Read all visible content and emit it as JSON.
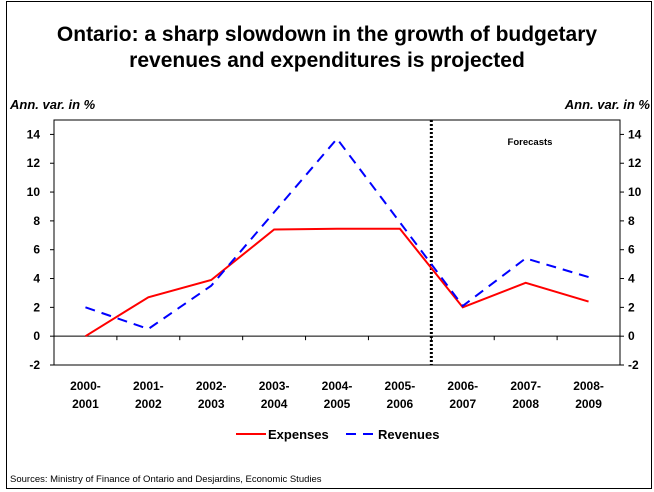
{
  "chart_data": {
    "type": "line",
    "title": "Ontario: a sharp slowdown in the growth of budgetary revenues and expenditures is projected",
    "title_lines": [
      "Ontario: a sharp slowdown in the growth of budgetary",
      "revenues and expenditures is projected"
    ],
    "ylabel_left": "Ann. var. in %",
    "ylabel_right": "Ann. var. in %",
    "ylim": [
      -2,
      15
    ],
    "y_ticks": [
      -2,
      0,
      2,
      4,
      6,
      8,
      10,
      12,
      14
    ],
    "categories": [
      [
        "2000-",
        "2001"
      ],
      [
        "2001-",
        "2002"
      ],
      [
        "2002-",
        "2003"
      ],
      [
        "2003-",
        "2004"
      ],
      [
        "2004-",
        "2005"
      ],
      [
        "2005-",
        "2006"
      ],
      [
        "2006-",
        "2007"
      ],
      [
        "2007-",
        "2008"
      ],
      [
        "2008-",
        "2009"
      ]
    ],
    "series": [
      {
        "name": "Expenses",
        "color": "#ff0000",
        "dash": "solid",
        "values": [
          0.0,
          2.7,
          3.9,
          7.4,
          7.45,
          7.45,
          2.0,
          3.7,
          2.4
        ]
      },
      {
        "name": "Revenues",
        "color": "#0000ff",
        "dash": "dashed",
        "values": [
          2.0,
          0.5,
          3.5,
          8.6,
          13.7,
          7.9,
          2.1,
          5.4,
          4.1
        ]
      }
    ],
    "forecast_divider_between": [
      5,
      6
    ],
    "annotation": "Forecasts",
    "legend": "bottom-center",
    "grid": false
  },
  "source": "Sources: Ministry of Finance of Ontario and Desjardins, Economic Studies"
}
